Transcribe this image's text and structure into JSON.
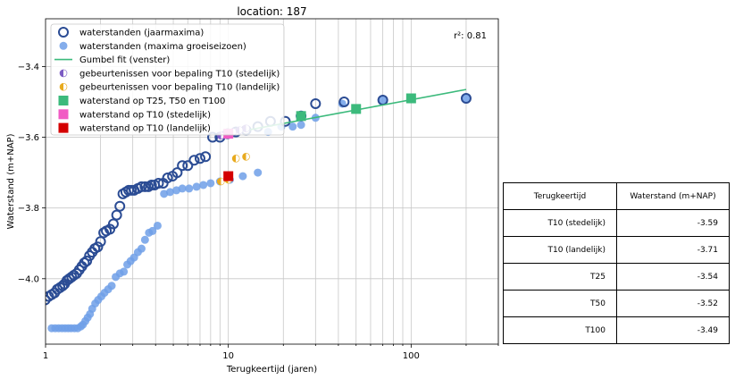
{
  "chart_data": {
    "type": "scatter",
    "title": "location: 187",
    "xlabel": "Terugkeertijd (jaren)",
    "ylabel": "Waterstand (m+NAP)",
    "xscale": "log",
    "xlim": [
      1,
      300
    ],
    "ylim": [
      -4.185,
      -3.265
    ],
    "xticks": [
      {
        "v": 1,
        "label": "1"
      },
      {
        "v": 10,
        "label": "10"
      },
      {
        "v": 100,
        "label": "100"
      }
    ],
    "yticks": [
      {
        "v": -3.4,
        "label": "−3.4"
      },
      {
        "v": -3.6,
        "label": "−3.6"
      },
      {
        "v": -3.8,
        "label": "−3.8"
      },
      {
        "v": -4.0,
        "label": "−4.0"
      }
    ],
    "grid": true,
    "legend_position": "top-left",
    "annotation": "r²: 0.81",
    "colors": {
      "jaarmaxima": "#2b4c94",
      "groeiseizoen": "#6f9fe8",
      "gumbel": "#3cba7c",
      "stedelijk": "#7c5cc4",
      "landelijk": "#e8aa1e",
      "t25_50_100": "#3cba7c",
      "t10_stedelijk": "#f15bc4",
      "t10_landelijk": "#d40000"
    },
    "legend": [
      {
        "key": "jaarmaxima",
        "label": "waterstanden (jaarmaxima)",
        "marker": "open-circle"
      },
      {
        "key": "groeiseizoen",
        "label": "waterstanden (maxima groeiseizoen)",
        "marker": "circle"
      },
      {
        "key": "gumbel",
        "label": "Gumbel fit (venster)",
        "marker": "line"
      },
      {
        "key": "stedelijk",
        "label": "gebeurtenissen voor bepaling T10 (stedelijk)",
        "marker": "half-circle"
      },
      {
        "key": "landelijk",
        "label": "gebeurtenissen voor bepaling T10 (landelijk)",
        "marker": "half-circle"
      },
      {
        "key": "t25_50_100",
        "label": "waterstand op T25, T50 en T100",
        "marker": "square"
      },
      {
        "key": "t10_stedelijk",
        "label": "waterstand op T10 (stedelijk)",
        "marker": "square"
      },
      {
        "key": "t10_landelijk",
        "label": "waterstand op T10 (landelijk)",
        "marker": "square"
      }
    ],
    "series": [
      {
        "name": "waterstanden (jaarmaxima)",
        "key": "jaarmaxima",
        "points": [
          [
            0.995,
            -4.06
          ],
          [
            1.04,
            -4.05
          ],
          [
            1.08,
            -4.045
          ],
          [
            1.12,
            -4.04
          ],
          [
            1.16,
            -4.03
          ],
          [
            1.2,
            -4.025
          ],
          [
            1.24,
            -4.02
          ],
          [
            1.27,
            -4.015
          ],
          [
            1.31,
            -4.005
          ],
          [
            1.35,
            -4.0
          ],
          [
            1.39,
            -3.995
          ],
          [
            1.43,
            -3.99
          ],
          [
            1.48,
            -3.985
          ],
          [
            1.53,
            -3.975
          ],
          [
            1.58,
            -3.965
          ],
          [
            1.63,
            -3.955
          ],
          [
            1.68,
            -3.95
          ],
          [
            1.74,
            -3.935
          ],
          [
            1.8,
            -3.925
          ],
          [
            1.86,
            -3.915
          ],
          [
            1.93,
            -3.91
          ],
          [
            2.0,
            -3.895
          ],
          [
            2.08,
            -3.87
          ],
          [
            2.15,
            -3.865
          ],
          [
            2.25,
            -3.86
          ],
          [
            2.35,
            -3.845
          ],
          [
            2.45,
            -3.82
          ],
          [
            2.55,
            -3.795
          ],
          [
            2.65,
            -3.76
          ],
          [
            2.75,
            -3.755
          ],
          [
            2.85,
            -3.75
          ],
          [
            2.95,
            -3.75
          ],
          [
            3.05,
            -3.75
          ],
          [
            3.2,
            -3.745
          ],
          [
            3.35,
            -3.74
          ],
          [
            3.5,
            -3.74
          ],
          [
            3.65,
            -3.74
          ],
          [
            3.8,
            -3.735
          ],
          [
            3.95,
            -3.735
          ],
          [
            4.15,
            -3.73
          ],
          [
            4.4,
            -3.73
          ],
          [
            4.65,
            -3.715
          ],
          [
            4.95,
            -3.71
          ],
          [
            5.25,
            -3.7
          ],
          [
            5.6,
            -3.68
          ],
          [
            6.0,
            -3.68
          ],
          [
            6.5,
            -3.665
          ],
          [
            7.0,
            -3.66
          ],
          [
            7.5,
            -3.655
          ],
          [
            8.2,
            -3.6
          ],
          [
            9.0,
            -3.6
          ],
          [
            9.9,
            -3.59
          ],
          [
            11.0,
            -3.585
          ],
          [
            12.5,
            -3.58
          ],
          [
            14.5,
            -3.57
          ],
          [
            17.0,
            -3.555
          ],
          [
            20.5,
            -3.555
          ],
          [
            25.0,
            -3.54
          ],
          [
            30.0,
            -3.505
          ],
          [
            43.0,
            -3.5
          ],
          [
            70.0,
            -3.495
          ],
          [
            200.0,
            -3.49
          ]
        ]
      },
      {
        "name": "waterstanden (maxima groeiseizoen)",
        "key": "groeiseizoen",
        "points": [
          [
            1.08,
            -4.14
          ],
          [
            1.13,
            -4.14
          ],
          [
            1.18,
            -4.14
          ],
          [
            1.23,
            -4.14
          ],
          [
            1.28,
            -4.14
          ],
          [
            1.33,
            -4.14
          ],
          [
            1.38,
            -4.14
          ],
          [
            1.44,
            -4.14
          ],
          [
            1.5,
            -4.14
          ],
          [
            1.56,
            -4.135
          ],
          [
            1.6,
            -4.13
          ],
          [
            1.65,
            -4.12
          ],
          [
            1.7,
            -4.11
          ],
          [
            1.75,
            -4.1
          ],
          [
            1.8,
            -4.085
          ],
          [
            1.87,
            -4.07
          ],
          [
            1.94,
            -4.06
          ],
          [
            2.02,
            -4.05
          ],
          [
            2.1,
            -4.04
          ],
          [
            2.2,
            -4.03
          ],
          [
            2.3,
            -4.02
          ],
          [
            2.42,
            -3.995
          ],
          [
            2.55,
            -3.985
          ],
          [
            2.68,
            -3.98
          ],
          [
            2.8,
            -3.96
          ],
          [
            2.92,
            -3.95
          ],
          [
            3.05,
            -3.94
          ],
          [
            3.2,
            -3.925
          ],
          [
            3.35,
            -3.915
          ],
          [
            3.5,
            -3.89
          ],
          [
            3.68,
            -3.87
          ],
          [
            3.85,
            -3.865
          ],
          [
            4.1,
            -3.85
          ],
          [
            4.45,
            -3.76
          ],
          [
            4.8,
            -3.755
          ],
          [
            5.2,
            -3.75
          ],
          [
            5.6,
            -3.745
          ],
          [
            6.1,
            -3.745
          ],
          [
            6.7,
            -3.74
          ],
          [
            7.3,
            -3.735
          ],
          [
            8.0,
            -3.73
          ],
          [
            9.0,
            -3.725
          ],
          [
            10.2,
            -3.72
          ],
          [
            12.0,
            -3.71
          ],
          [
            14.5,
            -3.7
          ],
          [
            16.5,
            -3.585
          ],
          [
            19.5,
            -3.57
          ],
          [
            22.5,
            -3.57
          ],
          [
            25.0,
            -3.565
          ],
          [
            30.0,
            -3.545
          ],
          [
            42.0,
            -3.505
          ],
          [
            70.0,
            -3.495
          ],
          [
            200.0,
            -3.49
          ]
        ]
      },
      {
        "name": "gebeurtenissen voor bepaling T10 (stedelijk)",
        "key": "stedelijk",
        "points": [
          [
            9.1,
            -3.595
          ],
          [
            10.0,
            -3.59
          ],
          [
            10.6,
            -3.585
          ],
          [
            11.5,
            -3.58
          ],
          [
            12.5,
            -3.575
          ]
        ]
      },
      {
        "name": "gebeurtenissen voor bepaling T10 (landelijk)",
        "key": "landelijk",
        "points": [
          [
            9.1,
            -3.725
          ],
          [
            10.0,
            -3.72
          ],
          [
            11.0,
            -3.66
          ],
          [
            12.5,
            -3.655
          ]
        ]
      }
    ],
    "gumbel_fit": {
      "name": "Gumbel fit (venster)",
      "x": [
        10,
        200
      ],
      "y": [
        -3.59,
        -3.465
      ]
    },
    "return_levels": [
      {
        "key": "t10_stedelijk",
        "x": 10,
        "y": -3.59
      },
      {
        "key": "t10_landelijk",
        "x": 10,
        "y": -3.71
      },
      {
        "key": "t25_50_100",
        "x": 25,
        "y": -3.54
      },
      {
        "key": "t25_50_100",
        "x": 50,
        "y": -3.52
      },
      {
        "key": "t25_50_100",
        "x": 100,
        "y": -3.49
      }
    ]
  },
  "table": {
    "headers": [
      "Terugkeertijd",
      "Waterstand (m+NAP)"
    ],
    "rows": [
      [
        "T10 (stedelijk)",
        "-3.59"
      ],
      [
        "T10 (landelijk)",
        "-3.71"
      ],
      [
        "T25",
        "-3.54"
      ],
      [
        "T50",
        "-3.52"
      ],
      [
        "T100",
        "-3.49"
      ]
    ]
  }
}
